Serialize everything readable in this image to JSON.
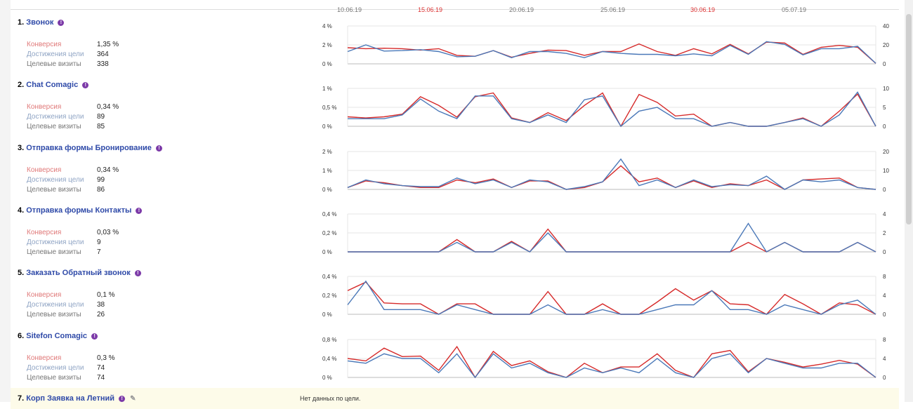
{
  "top_axis": {
    "labels": [
      {
        "text": "10.06.19",
        "red": false
      },
      {
        "text": "15.06.19",
        "red": true
      },
      {
        "text": "20.06.19",
        "red": false
      },
      {
        "text": "25.06.19",
        "red": false
      },
      {
        "text": "30.06.19",
        "red": true
      },
      {
        "text": "05.07.19",
        "red": false
      }
    ]
  },
  "labels": {
    "conversion": "Конверсия",
    "reaches": "Достижения цели",
    "visits": "Целевые визиты"
  },
  "goals": [
    {
      "num": "1.",
      "title": "Звонок",
      "conversion": "1,35 %",
      "reaches": "364",
      "visits": "338",
      "left_ticks": [
        "4 %",
        "2 %",
        "0 %"
      ],
      "right_ticks": [
        "40",
        "20",
        "0"
      ]
    },
    {
      "num": "2.",
      "title": "Chat Comagic",
      "conversion": "0,34 %",
      "reaches": "89",
      "visits": "85",
      "left_ticks": [
        "1 %",
        "0,5 %",
        "0 %"
      ],
      "right_ticks": [
        "10",
        "5",
        "0"
      ]
    },
    {
      "num": "3.",
      "title": "Отправка формы Бронирование",
      "conversion": "0,34 %",
      "reaches": "99",
      "visits": "86",
      "left_ticks": [
        "2 %",
        "1 %",
        "0 %"
      ],
      "right_ticks": [
        "20",
        "10",
        "0"
      ]
    },
    {
      "num": "4.",
      "title": "Отправка формы Контакты",
      "conversion": "0,03 %",
      "reaches": "9",
      "visits": "7",
      "left_ticks": [
        "0,4 %",
        "0,2 %",
        "0 %"
      ],
      "right_ticks": [
        "4",
        "2",
        "0"
      ]
    },
    {
      "num": "5.",
      "title": "Заказать Обратный звонок",
      "conversion": "0,1 %",
      "reaches": "38",
      "visits": "26",
      "left_ticks": [
        "0,4 %",
        "0,2 %",
        "0 %"
      ],
      "right_ticks": [
        "8",
        "4",
        "0"
      ]
    },
    {
      "num": "6.",
      "title": "Sitefon Comagic",
      "conversion": "0,3 %",
      "reaches": "74",
      "visits": "74",
      "left_ticks": [
        "0,8 %",
        "0,4 %",
        "0 %"
      ],
      "right_ticks": [
        "8",
        "4",
        "0"
      ]
    }
  ],
  "goal7": {
    "num": "7.",
    "title": "Корп Заявка на Летний",
    "nodata": "Нет данных по цели."
  },
  "colors": {
    "red": "#d62a2a",
    "blue": "#4a78b8",
    "title": "#2f4aa8",
    "info": "#7c3aa8"
  },
  "chart_data": [
    {
      "type": "line",
      "ylim": [
        0,
        4
      ],
      "y2lim": [
        0,
        40
      ],
      "series": [
        {
          "values": [
            1.7,
            1.6,
            1.65,
            1.6,
            1.45,
            1.6,
            0.9,
            0.8,
            1.4,
            0.7,
            1.1,
            1.45,
            1.4,
            0.9,
            1.3,
            1.3,
            2.1,
            1.3,
            0.9,
            1.6,
            1.05,
            2.05,
            1.05,
            2.3,
            2.2,
            1.0,
            1.75,
            1.95,
            1.75,
            0.05
          ]
        },
        {
          "values": [
            1.3,
            2.0,
            1.35,
            1.4,
            1.5,
            1.3,
            0.75,
            0.8,
            1.4,
            0.65,
            1.3,
            1.3,
            1.1,
            0.65,
            1.3,
            1.1,
            1.0,
            1.0,
            0.85,
            1.05,
            0.85,
            1.95,
            1.0,
            2.35,
            2.05,
            0.95,
            1.6,
            1.6,
            1.85,
            0.05
          ]
        }
      ]
    },
    {
      "type": "line",
      "ylim": [
        0,
        1
      ],
      "y2lim": [
        0,
        10
      ],
      "series": [
        {
          "values": [
            0.25,
            0.22,
            0.25,
            0.32,
            0.78,
            0.55,
            0.24,
            0.78,
            0.88,
            0.22,
            0.1,
            0.36,
            0.15,
            0.55,
            0.88,
            0.0,
            0.84,
            0.63,
            0.27,
            0.32,
            0.0,
            0.1,
            0.0,
            0.0,
            0.1,
            0.22,
            0.0,
            0.4,
            0.85,
            0.0
          ]
        },
        {
          "values": [
            0.2,
            0.2,
            0.2,
            0.3,
            0.72,
            0.4,
            0.2,
            0.8,
            0.8,
            0.2,
            0.1,
            0.3,
            0.1,
            0.7,
            0.8,
            0.0,
            0.4,
            0.5,
            0.2,
            0.2,
            0.0,
            0.1,
            0.0,
            0.0,
            0.1,
            0.2,
            0.0,
            0.3,
            0.9,
            0.0
          ]
        }
      ]
    },
    {
      "type": "line",
      "ylim": [
        0,
        2
      ],
      "y2lim": [
        0,
        20
      ],
      "series": [
        {
          "values": [
            0.1,
            0.45,
            0.35,
            0.2,
            0.1,
            0.1,
            0.5,
            0.35,
            0.55,
            0.1,
            0.45,
            0.45,
            0.0,
            0.1,
            0.4,
            1.25,
            0.4,
            0.6,
            0.1,
            0.45,
            0.1,
            0.3,
            0.2,
            0.5,
            0.0,
            0.5,
            0.55,
            0.6,
            0.1,
            0.0
          ]
        },
        {
          "values": [
            0.1,
            0.5,
            0.3,
            0.2,
            0.15,
            0.15,
            0.6,
            0.3,
            0.5,
            0.1,
            0.5,
            0.4,
            0.0,
            0.15,
            0.4,
            1.6,
            0.2,
            0.5,
            0.1,
            0.5,
            0.15,
            0.25,
            0.2,
            0.7,
            0.0,
            0.5,
            0.4,
            0.5,
            0.1,
            0.0
          ]
        }
      ]
    },
    {
      "type": "line",
      "ylim": [
        0,
        0.4
      ],
      "y2lim": [
        0,
        4
      ],
      "series": [
        {
          "values": [
            0,
            0,
            0,
            0,
            0,
            0,
            0.13,
            0,
            0,
            0.11,
            0,
            0.24,
            0,
            0,
            0,
            0,
            0,
            0,
            0,
            0,
            0,
            0,
            0.1,
            0,
            0.1,
            0,
            0,
            0,
            0.1,
            0
          ]
        },
        {
          "values": [
            0,
            0,
            0,
            0,
            0,
            0,
            0.1,
            0,
            0,
            0.1,
            0,
            0.2,
            0,
            0,
            0,
            0,
            0,
            0,
            0,
            0,
            0,
            0,
            0.3,
            0,
            0.1,
            0,
            0,
            0,
            0.1,
            0
          ]
        }
      ]
    },
    {
      "type": "line",
      "ylim": [
        0,
        0.4
      ],
      "y2lim": [
        0,
        8
      ],
      "series": [
        {
          "values": [
            0.25,
            0.34,
            0.12,
            0.11,
            0.11,
            0.0,
            0.11,
            0.11,
            0.0,
            0.0,
            0.0,
            0.24,
            0.0,
            0.0,
            0.11,
            0.0,
            0.0,
            0.13,
            0.27,
            0.15,
            0.25,
            0.11,
            0.1,
            0.0,
            0.21,
            0.11,
            0.0,
            0.12,
            0.1,
            0.0
          ]
        },
        {
          "values": [
            0.1,
            0.35,
            0.05,
            0.05,
            0.05,
            0.0,
            0.1,
            0.05,
            0.0,
            0.0,
            0.0,
            0.1,
            0.0,
            0.0,
            0.05,
            0.0,
            0.0,
            0.05,
            0.1,
            0.1,
            0.25,
            0.05,
            0.05,
            0.0,
            0.1,
            0.05,
            0.0,
            0.1,
            0.15,
            0.0
          ]
        }
      ]
    },
    {
      "type": "line",
      "ylim": [
        0,
        0.8
      ],
      "y2lim": [
        0,
        8
      ],
      "series": [
        {
          "values": [
            0.4,
            0.35,
            0.62,
            0.44,
            0.45,
            0.15,
            0.65,
            0.0,
            0.55,
            0.25,
            0.35,
            0.12,
            0.0,
            0.3,
            0.1,
            0.22,
            0.22,
            0.5,
            0.15,
            0.0,
            0.5,
            0.57,
            0.12,
            0.4,
            0.32,
            0.22,
            0.28,
            0.36,
            0.28,
            0.0
          ]
        },
        {
          "values": [
            0.35,
            0.3,
            0.5,
            0.4,
            0.4,
            0.1,
            0.5,
            0.0,
            0.5,
            0.2,
            0.3,
            0.1,
            0.0,
            0.2,
            0.1,
            0.2,
            0.1,
            0.4,
            0.1,
            0.0,
            0.4,
            0.5,
            0.1,
            0.4,
            0.3,
            0.2,
            0.2,
            0.3,
            0.3,
            0.0
          ]
        }
      ]
    }
  ]
}
